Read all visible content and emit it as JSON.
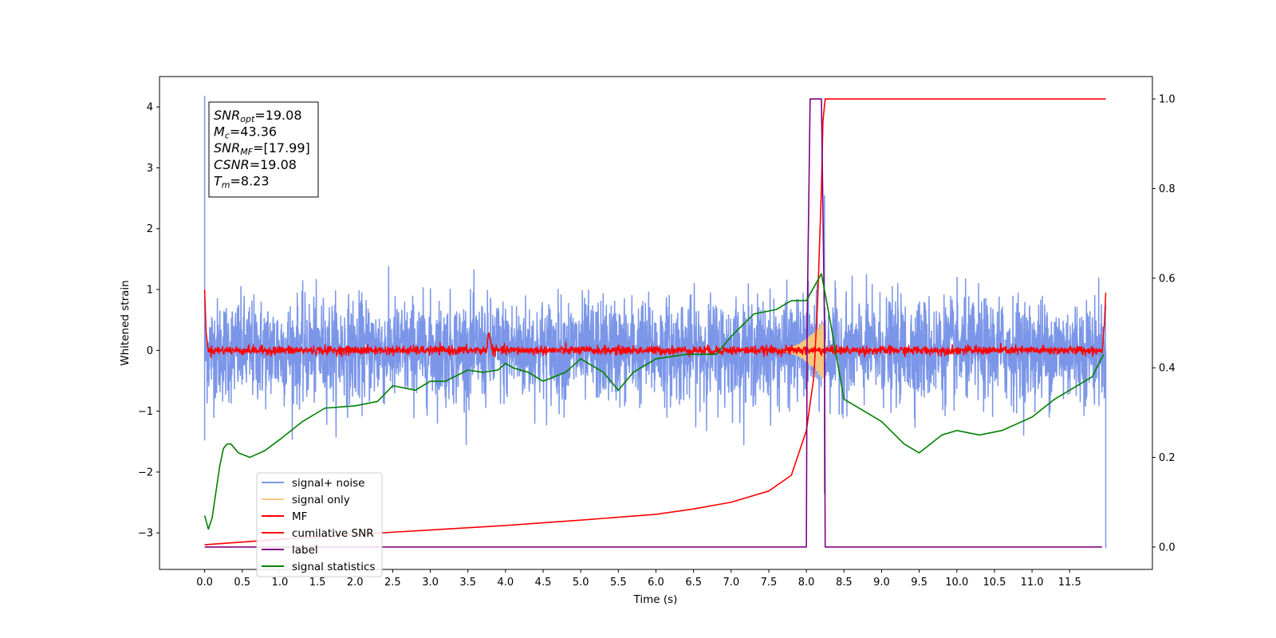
{
  "chart_data": {
    "type": "line",
    "xlabel": "Time (s)",
    "ylabel_left": "Whitened strain",
    "ylabel_right": "",
    "xlim": [
      -0.6,
      12.6
    ],
    "ylim_left": [
      -3.6,
      4.5
    ],
    "ylim_right": [
      -0.05,
      1.05
    ],
    "x_ticks": [
      "0.0",
      "0.5",
      "1.0",
      "1.5",
      "2.0",
      "2.5",
      "3.0",
      "3.5",
      "4.0",
      "4.5",
      "5.0",
      "5.5",
      "6.0",
      "6.5",
      "7.0",
      "7.5",
      "8.0",
      "8.5",
      "9.0",
      "9.5",
      "10.0",
      "10.5",
      "11.0",
      "11.5"
    ],
    "y_ticks_left": [
      "−3",
      "−2",
      "−1",
      "0",
      "1",
      "2",
      "3",
      "4"
    ],
    "y_ticks_right": [
      "0.0",
      "0.2",
      "0.4",
      "0.6",
      "0.8",
      "1.0"
    ],
    "grid": false,
    "legend_position": "lower-left",
    "annotation": [
      {
        "base": "SNR",
        "sub": "opt",
        "value": "=19.08"
      },
      {
        "base": "M",
        "sub": "c",
        "value": "=43.36"
      },
      {
        "base": "SNR",
        "sub": "MF",
        "value": "=[17.99]"
      },
      {
        "base": "CSNR",
        "sub": "",
        "value": "=19.08"
      },
      {
        "base": "T",
        "sub": "m",
        "value": "=8.23"
      }
    ],
    "series": [
      {
        "name": "signal+ noise",
        "color": "#7b96e8",
        "axis": "left",
        "style": "noise",
        "x_range": [
          0,
          11.98
        ],
        "amplitude_envelope": [
          -1.0,
          1.1
        ],
        "peaks": [
          [
            0.0,
            4.18
          ],
          [
            0.0,
            -1.48
          ],
          [
            8.24,
            2.55
          ],
          [
            8.24,
            -2.35
          ],
          [
            11.98,
            -3.25
          ],
          [
            11.98,
            -1.2
          ]
        ]
      },
      {
        "name": "signal only",
        "color": "#f5c77e",
        "axis": "left",
        "style": "chirp",
        "x_range": [
          7.6,
          8.27
        ],
        "peak_amplitude": 0.55
      },
      {
        "name": "MF",
        "color": "#ff0000",
        "axis": "left",
        "style": "mf",
        "x": [
          0.0,
          0.02,
          0.05,
          3.75,
          3.78,
          3.8,
          3.85,
          11.93,
          11.96,
          11.98
        ],
        "y": [
          1.0,
          0.3,
          0.0,
          0.0,
          0.4,
          0.25,
          0.0,
          0.0,
          0.4,
          0.95
        ]
      },
      {
        "name": "cumilative SNR",
        "color": "#ff0000",
        "axis": "right",
        "x": [
          0.0,
          1.0,
          2.0,
          3.0,
          4.0,
          5.0,
          6.0,
          6.5,
          7.0,
          7.5,
          7.8,
          8.0,
          8.1,
          8.15,
          8.2,
          8.22,
          8.25,
          9.0,
          10.0,
          11.0,
          11.98
        ],
        "y": [
          0.005,
          0.017,
          0.028,
          0.038,
          0.048,
          0.06,
          0.073,
          0.085,
          0.1,
          0.125,
          0.16,
          0.26,
          0.38,
          0.55,
          0.8,
          0.95,
          1.0,
          1.0,
          1.0,
          1.0,
          1.0
        ]
      },
      {
        "name": "label",
        "color": "#800080",
        "axis": "right",
        "x": [
          0.0,
          8.0,
          8.01,
          8.05,
          8.2,
          8.24,
          8.25,
          11.93
        ],
        "y": [
          0.0,
          0.0,
          0.5,
          1.0,
          1.0,
          0.5,
          0.0,
          0.0
        ]
      },
      {
        "name": "signal statistics",
        "color": "#008000",
        "axis": "right",
        "x": [
          0.0,
          0.05,
          0.1,
          0.2,
          0.25,
          0.3,
          0.35,
          0.45,
          0.6,
          0.8,
          1.0,
          1.3,
          1.6,
          2.0,
          2.3,
          2.5,
          2.8,
          3.0,
          3.2,
          3.5,
          3.7,
          3.9,
          4.0,
          4.1,
          4.3,
          4.5,
          4.8,
          5.0,
          5.3,
          5.5,
          5.7,
          6.0,
          6.4,
          6.8,
          7.0,
          7.3,
          7.6,
          7.8,
          8.0,
          8.1,
          8.2,
          8.3,
          8.5,
          8.8,
          9.0,
          9.3,
          9.5,
          9.8,
          10.0,
          10.3,
          10.6,
          11.0,
          11.3,
          11.6,
          11.8,
          11.95
        ],
        "y": [
          0.07,
          0.04,
          0.065,
          0.18,
          0.22,
          0.23,
          0.23,
          0.21,
          0.2,
          0.215,
          0.24,
          0.28,
          0.31,
          0.315,
          0.325,
          0.36,
          0.35,
          0.37,
          0.37,
          0.395,
          0.39,
          0.395,
          0.41,
          0.4,
          0.39,
          0.37,
          0.39,
          0.42,
          0.39,
          0.35,
          0.39,
          0.42,
          0.43,
          0.43,
          0.47,
          0.52,
          0.53,
          0.55,
          0.55,
          0.58,
          0.61,
          0.52,
          0.33,
          0.3,
          0.28,
          0.23,
          0.21,
          0.25,
          0.26,
          0.25,
          0.26,
          0.29,
          0.33,
          0.36,
          0.38,
          0.43
        ]
      }
    ]
  }
}
